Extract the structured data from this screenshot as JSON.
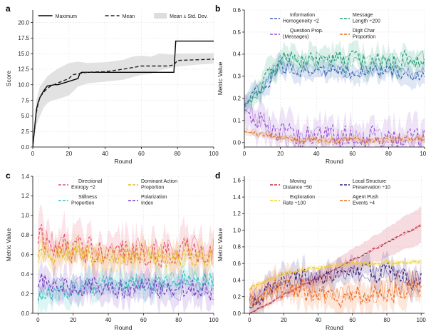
{
  "figure": {
    "panel_letters": [
      "a",
      "b",
      "c",
      "d"
    ]
  },
  "chart_data": [
    {
      "type": "line",
      "panel": "a",
      "xlabel": "Round",
      "ylabel": "Score",
      "xlim": [
        0,
        100
      ],
      "ylim": [
        0,
        22
      ],
      "xticks": [
        0,
        20,
        40,
        60,
        80,
        100
      ],
      "yticks": [
        0.0,
        2.5,
        5.0,
        7.5,
        10.0,
        12.5,
        15.0,
        17.5,
        20.0
      ],
      "ytick_labels": [
        "0.0",
        "2.5",
        "5.0",
        "7.5",
        "10.0",
        "12.5",
        "15.0",
        "17.5",
        "20.0"
      ],
      "grid": true,
      "legend_position": "top",
      "legend": [
        "Maximum",
        "Mean",
        "Mean ± Std. Dev."
      ],
      "series": [
        {
          "name": "Maximum",
          "style": "solid",
          "color": "#000000",
          "x": [
            0,
            1,
            2,
            3,
            4,
            6,
            8,
            12,
            14,
            25,
            26,
            27,
            78,
            79,
            100
          ],
          "y": [
            0,
            3,
            6,
            7.2,
            8,
            9,
            9.8,
            10,
            10,
            11,
            11.8,
            12,
            12,
            17,
            17
          ]
        },
        {
          "name": "Mean",
          "style": "dashed",
          "color": "#222222",
          "x": [
            0,
            1,
            2,
            3,
            4,
            6,
            8,
            10,
            14,
            20,
            22,
            30,
            40,
            50,
            60,
            70,
            75,
            78,
            80,
            90,
            100
          ],
          "y": [
            0,
            2.8,
            5.6,
            7,
            8,
            8.8,
            9.4,
            9.8,
            10.3,
            11,
            11.6,
            12,
            12.1,
            12.5,
            13,
            13,
            13,
            13.2,
            13.9,
            14,
            14.1
          ]
        }
      ],
      "band": {
        "name": "Mean ± Std. Dev.",
        "color": "#dddddd",
        "x": [
          0,
          2,
          4,
          6,
          8,
          10,
          14,
          20,
          25,
          30,
          40,
          50,
          55,
          60,
          65,
          70,
          78,
          80,
          90,
          100
        ],
        "lower": [
          0,
          3.5,
          5,
          6.3,
          7,
          7.4,
          7.7,
          8.3,
          9.7,
          10.2,
          10.5,
          10.8,
          11.2,
          11.6,
          11.7,
          12.3,
          12.8,
          12.9,
          13.2,
          13.4
        ],
        "upper": [
          0,
          7.5,
          9.8,
          10.5,
          11.3,
          11.8,
          12.6,
          13.5,
          13.7,
          13.5,
          13.6,
          14,
          14.5,
          14.7,
          14.5,
          15,
          14.8,
          15,
          15,
          15.1
        ]
      }
    },
    {
      "type": "line",
      "panel": "b",
      "xlabel": "Round",
      "ylabel": "Metric Value",
      "xlim": [
        0,
        100
      ],
      "ylim": [
        -0.02,
        0.6
      ],
      "xticks": [
        0,
        20,
        40,
        60,
        80,
        100
      ],
      "yticks": [
        0.0,
        0.1,
        0.2,
        0.3,
        0.4,
        0.5,
        0.6
      ],
      "ytick_labels": [
        "0.0",
        "0.1",
        "0.2",
        "0.3",
        "0.4",
        "0.5",
        "0.6"
      ],
      "grid": true,
      "legend_position": "top",
      "series": [
        {
          "name": "Information Homogeneity ÷2",
          "legend_lines": [
            "Information",
            "Homogeneity ÷2"
          ],
          "color": "#3a64b8",
          "base": [
            0.17,
            0.34,
            0.33,
            0.32,
            0.32,
            0.31
          ],
          "spread": 0.04
        },
        {
          "name": "Message Length ÷200",
          "legend_lines": [
            "Message",
            "Length ÷200"
          ],
          "color": "#27a07a",
          "base": [
            0.16,
            0.37,
            0.38,
            0.37,
            0.37,
            0.38
          ],
          "spread": 0.05
        },
        {
          "name": "Question Prop. (Messages)",
          "legend_lines": [
            "Question Prop.",
            "(Messages)"
          ],
          "color": "#9b59d0",
          "base": [
            0.15,
            0.03,
            0.02,
            0.02,
            0.01,
            0.01
          ],
          "spread": 0.07
        },
        {
          "name": "Digit Char Proportion",
          "legend_lines": [
            "Digit Char",
            "Proportion"
          ],
          "color": "#e07b2a",
          "base": [
            0.05,
            0.02,
            0.01,
            0.01,
            0.01,
            0.02
          ],
          "spread": 0.015
        }
      ]
    },
    {
      "type": "line",
      "panel": "c",
      "xlabel": "Round",
      "ylabel": "Metric Value",
      "xlim": [
        -3,
        100
      ],
      "ylim": [
        0,
        1.4
      ],
      "xticks": [
        0,
        20,
        40,
        60,
        80,
        100
      ],
      "yticks": [
        0.0,
        0.2,
        0.4,
        0.6,
        0.8,
        1.0,
        1.2,
        1.4
      ],
      "ytick_labels": [
        "0.0",
        "0.2",
        "0.4",
        "0.6",
        "0.8",
        "1.0",
        "1.2",
        "1.4"
      ],
      "grid": true,
      "legend_position": "top",
      "series": [
        {
          "name": "Directional Entropy ÷2",
          "legend_lines": [
            "Directional",
            "Entropy ÷2"
          ],
          "color": "#e8506e",
          "base": [
            0.75,
            0.66,
            0.64,
            0.63,
            0.64,
            0.66
          ],
          "spread": 0.18
        },
        {
          "name": "Dominant Action Proportion",
          "legend_lines": [
            "Dominant Action",
            "Proportion"
          ],
          "color": "#e8b81a",
          "base": [
            0.6,
            0.6,
            0.58,
            0.58,
            0.56,
            0.58
          ],
          "spread": 0.12
        },
        {
          "name": "Stillness Proportion",
          "legend_lines": [
            "Stillness",
            "Proportion"
          ],
          "color": "#2dc7bd",
          "base": [
            0.15,
            0.25,
            0.3,
            0.32,
            0.33,
            0.35
          ],
          "spread": 0.12
        },
        {
          "name": "Polarization Index",
          "legend_lines": [
            "Polarization",
            "Index"
          ],
          "color": "#7b3fc7",
          "base": [
            0.3,
            0.27,
            0.28,
            0.25,
            0.24,
            0.25
          ],
          "spread": 0.14
        }
      ]
    },
    {
      "type": "line",
      "panel": "d",
      "xlabel": "Round",
      "ylabel": "Metric Value",
      "xlim": [
        -3,
        102
      ],
      "ylim": [
        0,
        1.65
      ],
      "xticks": [
        0,
        20,
        40,
        60,
        80,
        100
      ],
      "yticks": [
        0.0,
        0.2,
        0.4,
        0.6,
        0.8,
        1.0,
        1.2,
        1.4,
        1.6
      ],
      "ytick_labels": [
        "0.0",
        "0.2",
        "0.4",
        "0.6",
        "0.8",
        "1.0",
        "1.2",
        "1.4",
        "1.6"
      ],
      "grid": true,
      "legend_position": "top",
      "series": [
        {
          "name": "Moving Distance ÷50",
          "legend_lines": [
            "Moving",
            "Distance ÷50"
          ],
          "color": "#c8283d",
          "base": [
            0.0,
            0.22,
            0.43,
            0.64,
            0.85,
            1.06
          ],
          "spread": 0.02,
          "band": 0.22
        },
        {
          "name": "Local Structure Preservation ÷10",
          "legend_lines": [
            "Local Structure",
            "Preservation ÷10"
          ],
          "color": "#3c1f7a",
          "base": [
            0.1,
            0.42,
            0.45,
            0.5,
            0.48,
            0.4
          ],
          "spread": 0.14
        },
        {
          "name": "Exploration Rate ÷100",
          "legend_lines": [
            "Exploration",
            "Rate ÷100"
          ],
          "color": "#f3cf28",
          "base": [
            0.3,
            0.48,
            0.55,
            0.59,
            0.61,
            0.62
          ],
          "spread": 0.03
        },
        {
          "name": "Agent Push Events ÷4",
          "legend_lines": [
            "Agent Push",
            "Events ÷4"
          ],
          "color": "#f06a1c",
          "base": [
            0.2,
            0.3,
            0.25,
            0.22,
            0.28,
            0.3
          ],
          "spread": 0.17
        }
      ]
    }
  ]
}
